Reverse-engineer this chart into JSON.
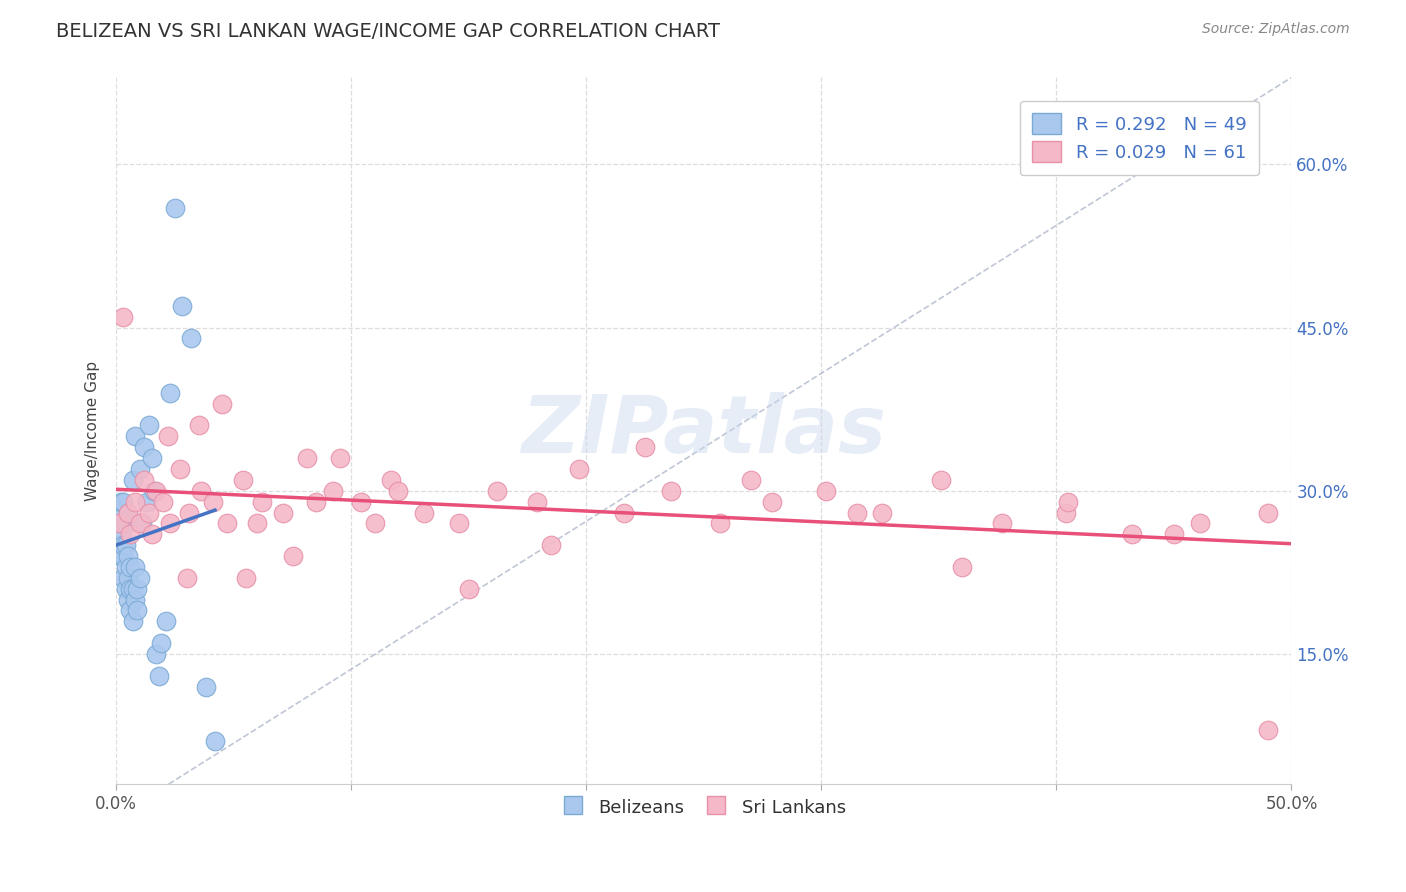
{
  "title": "BELIZEAN VS SRI LANKAN WAGE/INCOME GAP CORRELATION CHART",
  "source": "Source: ZipAtlas.com",
  "ylabel": "Wage/Income Gap",
  "xlim": [
    0.0,
    0.5
  ],
  "ylim": [
    0.03,
    0.68
  ],
  "x_ticks": [
    0.0,
    0.1,
    0.2,
    0.3,
    0.4,
    0.5
  ],
  "x_tick_labels_show": [
    "0.0%",
    "",
    "",
    "",
    "",
    "50.0%"
  ],
  "y_ticks": [
    0.15,
    0.3,
    0.45,
    0.6
  ],
  "y_tick_labels_right": [
    "15.0%",
    "30.0%",
    "45.0%",
    "60.0%"
  ],
  "background_color": "#ffffff",
  "plot_bg_color": "#ffffff",
  "grid_color": "#dddddd",
  "title_color": "#333333",
  "source_color": "#888888",
  "belizean_color": "#aac8ee",
  "belizean_edge": "#7aaad4",
  "srilankan_color": "#f4b8c8",
  "srilankan_edge": "#e890a8",
  "trend_blue": "#4472c4",
  "trend_pink": "#e8507a",
  "diag_color": "#b0b8cc",
  "legend_label_blue": "R = 0.292   N = 49",
  "legend_label_pink": "R = 0.029   N = 61",
  "belizean_x": [
    0.001,
    0.001,
    0.001,
    0.002,
    0.002,
    0.002,
    0.002,
    0.003,
    0.003,
    0.003,
    0.003,
    0.003,
    0.004,
    0.004,
    0.004,
    0.004,
    0.005,
    0.005,
    0.005,
    0.005,
    0.006,
    0.006,
    0.006,
    0.007,
    0.007,
    0.007,
    0.008,
    0.008,
    0.008,
    0.009,
    0.009,
    0.01,
    0.01,
    0.011,
    0.012,
    0.013,
    0.014,
    0.015,
    0.016,
    0.017,
    0.018,
    0.019,
    0.021,
    0.023,
    0.025,
    0.028,
    0.032,
    0.038,
    0.042
  ],
  "belizean_y": [
    0.25,
    0.27,
    0.28,
    0.24,
    0.26,
    0.27,
    0.29,
    0.22,
    0.24,
    0.25,
    0.27,
    0.29,
    0.21,
    0.23,
    0.25,
    0.27,
    0.2,
    0.22,
    0.24,
    0.28,
    0.19,
    0.21,
    0.23,
    0.18,
    0.21,
    0.31,
    0.2,
    0.23,
    0.35,
    0.19,
    0.21,
    0.22,
    0.32,
    0.27,
    0.34,
    0.29,
    0.36,
    0.33,
    0.3,
    0.15,
    0.13,
    0.16,
    0.18,
    0.39,
    0.56,
    0.47,
    0.44,
    0.12,
    0.07
  ],
  "srilankan_x": [
    0.001,
    0.003,
    0.005,
    0.006,
    0.008,
    0.01,
    0.012,
    0.014,
    0.017,
    0.02,
    0.023,
    0.027,
    0.031,
    0.036,
    0.041,
    0.047,
    0.054,
    0.062,
    0.071,
    0.081,
    0.092,
    0.104,
    0.117,
    0.131,
    0.146,
    0.162,
    0.179,
    0.197,
    0.216,
    0.236,
    0.257,
    0.279,
    0.302,
    0.326,
    0.351,
    0.377,
    0.404,
    0.432,
    0.461,
    0.49,
    0.022,
    0.03,
    0.045,
    0.06,
    0.075,
    0.095,
    0.12,
    0.15,
    0.185,
    0.225,
    0.27,
    0.315,
    0.36,
    0.405,
    0.45,
    0.49,
    0.015,
    0.035,
    0.055,
    0.085,
    0.11
  ],
  "srilankan_y": [
    0.27,
    0.46,
    0.28,
    0.26,
    0.29,
    0.27,
    0.31,
    0.28,
    0.3,
    0.29,
    0.27,
    0.32,
    0.28,
    0.3,
    0.29,
    0.27,
    0.31,
    0.29,
    0.28,
    0.33,
    0.3,
    0.29,
    0.31,
    0.28,
    0.27,
    0.3,
    0.29,
    0.32,
    0.28,
    0.3,
    0.27,
    0.29,
    0.3,
    0.28,
    0.31,
    0.27,
    0.28,
    0.26,
    0.27,
    0.28,
    0.35,
    0.22,
    0.38,
    0.27,
    0.24,
    0.33,
    0.3,
    0.21,
    0.25,
    0.34,
    0.31,
    0.28,
    0.23,
    0.29,
    0.26,
    0.08,
    0.26,
    0.36,
    0.22,
    0.29,
    0.27
  ]
}
